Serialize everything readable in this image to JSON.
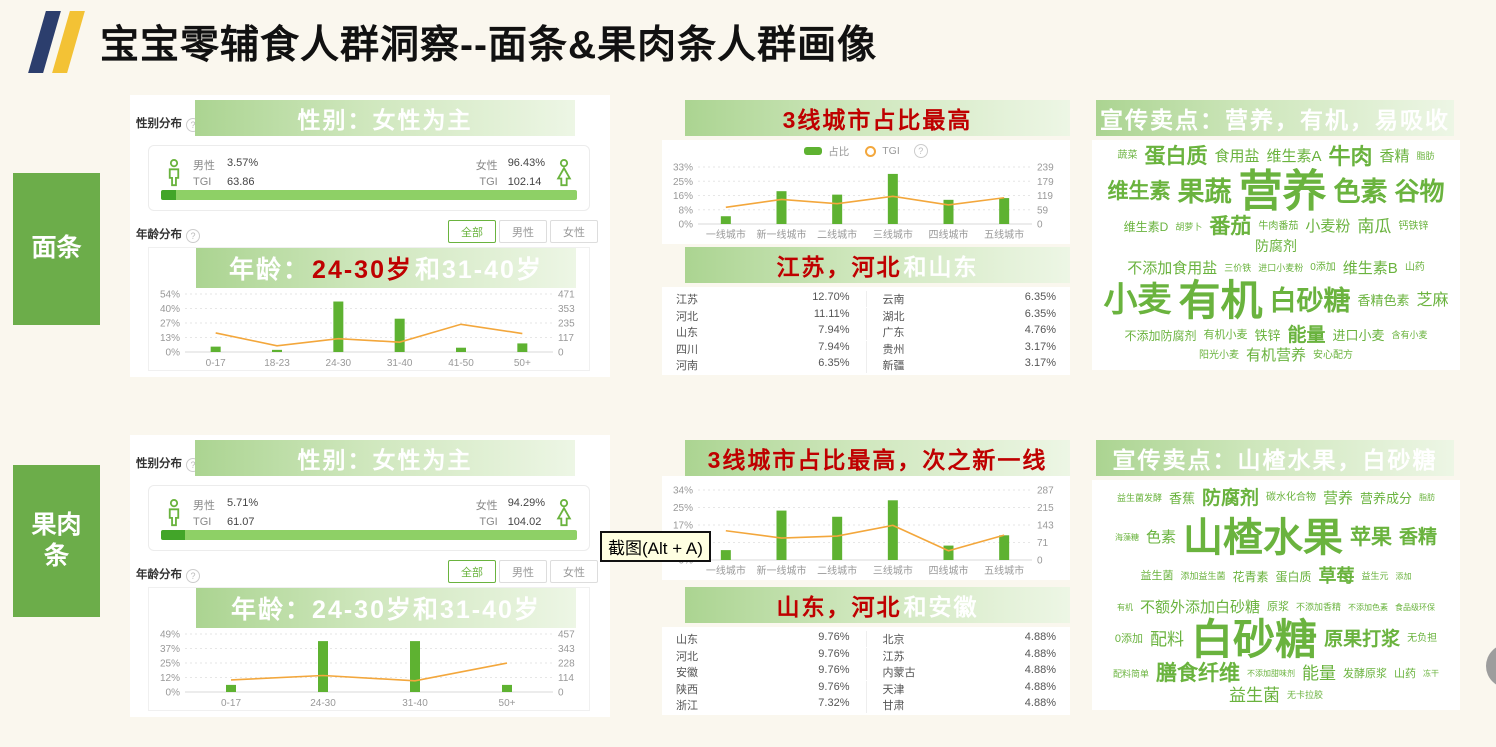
{
  "page": {
    "title": "宝宝零辅食人群洞察--面条&果肉条人群画像"
  },
  "colors": {
    "green": "#6ab33e",
    "bar_green": "#5eb231",
    "line_orange": "#f3a73c",
    "red": "#bf0000",
    "navy": "#2c3e6d",
    "gold": "#f3c235",
    "white": "#ffffff"
  },
  "overlay": {
    "screenshot_tooltip": "截图(Alt + A)"
  },
  "labels": {
    "gender_section": "性别分布",
    "age_section": "年龄分布",
    "male": "男性",
    "female": "女性",
    "tgi": "TGI",
    "tabs": [
      "全部",
      "男性",
      "女性"
    ],
    "legend_share": "占比",
    "legend_tgi": "TGI"
  },
  "rows": [
    {
      "side_label": "面条",
      "gender": {
        "banner": [
          {
            "t": "性别：女性为主",
            "c": "white"
          }
        ],
        "male_pct": "3.57%",
        "male_tgi": "63.86",
        "female_pct": "96.43%",
        "female_tgi": "102.14"
      },
      "age": {
        "banner": [
          {
            "t": "年龄：",
            "c": "white"
          },
          {
            "t": "24-30岁",
            "c": "red"
          },
          {
            "t": "和31-40岁",
            "c": "white"
          }
        ],
        "chart": {
          "type": "bar+line",
          "categories": [
            "0-17",
            "18-23",
            "24-30",
            "31-40",
            "41-50",
            "50+"
          ],
          "bars_pct": [
            5,
            2,
            47,
            31,
            4,
            8
          ],
          "line_tgi": [
            155,
            50,
            108,
            80,
            225,
            150
          ],
          "left_ticks": [
            "0%",
            "13%",
            "27%",
            "40%",
            "54%"
          ],
          "right_ticks": [
            "0",
            "117",
            "235",
            "353",
            "471"
          ],
          "left_max": 54,
          "right_max": 471
        }
      },
      "city": {
        "banner": [
          {
            "t": "3线城市占比最高",
            "c": "red"
          }
        ],
        "chart": {
          "type": "bar+line",
          "categories": [
            "一线城市",
            "新一线城市",
            "二线城市",
            "三线城市",
            "四线城市",
            "五线城市"
          ],
          "bars_pct": [
            4.5,
            19,
            17,
            29,
            14,
            15
          ],
          "line_tgi": [
            70,
            103,
            85,
            116,
            80,
            110
          ],
          "left_ticks": [
            "0%",
            "8%",
            "16%",
            "25%",
            "33%"
          ],
          "right_ticks": [
            "0",
            "59",
            "119",
            "179",
            "239"
          ],
          "left_max": 33,
          "right_max": 239
        }
      },
      "province": {
        "banner": [
          {
            "t": "江苏，河北",
            "c": "red"
          },
          {
            "t": "和山东",
            "c": "white"
          }
        ],
        "left": [
          [
            "江苏",
            "12.70%"
          ],
          [
            "河北",
            "11.11%"
          ],
          [
            "山东",
            "7.94%"
          ],
          [
            "四川",
            "7.94%"
          ],
          [
            "河南",
            "6.35%"
          ]
        ],
        "right": [
          [
            "云南",
            "6.35%"
          ],
          [
            "湖北",
            "6.35%"
          ],
          [
            "广东",
            "4.76%"
          ],
          [
            "贵州",
            "3.17%"
          ],
          [
            "新疆",
            "3.17%"
          ]
        ]
      },
      "selling": {
        "banner": [
          {
            "t": "宣传卖点：营养，有机，易吸收",
            "c": "white"
          }
        ],
        "cloud1": [
          {
            "t": "蔬菜",
            "s": 10
          },
          {
            "t": "蛋白质",
            "s": 21
          },
          {
            "t": "食用盐",
            "s": 15
          },
          {
            "t": "维生素A",
            "s": 15
          },
          {
            "t": "牛肉",
            "s": 22
          },
          {
            "t": "香精",
            "s": 15
          },
          {
            "t": "脂肪",
            "s": 9
          },
          {
            "t": "维生素",
            "s": 21
          },
          {
            "t": "果蔬",
            "s": 27
          },
          {
            "t": "营养",
            "s": 44
          },
          {
            "t": "色素",
            "s": 27
          },
          {
            "t": "谷物",
            "s": 25
          },
          {
            "t": "维生素D",
            "s": 12
          },
          {
            "t": "胡萝卜",
            "s": 9
          },
          {
            "t": "番茄",
            "s": 21
          },
          {
            "t": "牛肉番茄",
            "s": 10
          },
          {
            "t": "小麦粉",
            "s": 15
          },
          {
            "t": "南瓜",
            "s": 17
          },
          {
            "t": "钙铁锌",
            "s": 10
          },
          {
            "t": "防腐剂",
            "s": 14
          }
        ],
        "cloud2": [
          {
            "t": "不添加食用盐",
            "s": 15
          },
          {
            "t": "三价铁",
            "s": 9
          },
          {
            "t": "进口小麦粉",
            "s": 9
          },
          {
            "t": "0添加",
            "s": 10
          },
          {
            "t": "维生素B",
            "s": 15
          },
          {
            "t": "山药",
            "s": 10
          },
          {
            "t": "小麦",
            "s": 34
          },
          {
            "t": "有机",
            "s": 42
          },
          {
            "t": "白砂糖",
            "s": 27
          },
          {
            "t": "香精色素",
            "s": 13
          },
          {
            "t": "芝麻",
            "s": 16
          },
          {
            "t": "不添加防腐剂",
            "s": 12
          },
          {
            "t": "有机小麦",
            "s": 11
          },
          {
            "t": "铁锌",
            "s": 13
          },
          {
            "t": "能量",
            "s": 19
          },
          {
            "t": "进口小麦",
            "s": 13
          },
          {
            "t": "含有小麦",
            "s": 9
          },
          {
            "t": "阳光小麦",
            "s": 10
          },
          {
            "t": "有机营养",
            "s": 15
          },
          {
            "t": "安心配方",
            "s": 10
          }
        ]
      }
    },
    {
      "side_label": "果肉\n条",
      "gender": {
        "banner": [
          {
            "t": "性别：女性为主",
            "c": "white"
          }
        ],
        "male_pct": "5.71%",
        "male_tgi": "61.07",
        "female_pct": "94.29%",
        "female_tgi": "104.02"
      },
      "age": {
        "banner": [
          {
            "t": "年龄：24-30岁和31-40岁",
            "c": "white"
          }
        ],
        "chart": {
          "type": "bar+line",
          "categories": [
            "0-17",
            "24-30",
            "31-40",
            "50+"
          ],
          "bars_pct": [
            6,
            43,
            43,
            6
          ],
          "line_tgi": [
            95,
            130,
            88,
            228
          ],
          "left_ticks": [
            "0%",
            "12%",
            "25%",
            "37%",
            "49%"
          ],
          "right_ticks": [
            "0",
            "114",
            "228",
            "343",
            "457"
          ],
          "left_max": 49,
          "right_max": 457
        }
      },
      "city": {
        "banner": [
          {
            "t": "3线城市占比最高，次之新一线",
            "c": "red"
          }
        ],
        "chart": {
          "type": "bar+line",
          "categories": [
            "一线城市",
            "新一线城市",
            "二线城市",
            "三线城市",
            "四线城市",
            "五线城市"
          ],
          "bars_pct": [
            4.8,
            24,
            21,
            29,
            7,
            12
          ],
          "line_tgi": [
            120,
            90,
            98,
            142,
            38,
            102
          ],
          "left_ticks": [
            "0%",
            "8%",
            "17%",
            "25%",
            "34%"
          ],
          "right_ticks": [
            "0",
            "71",
            "143",
            "215",
            "287"
          ],
          "left_max": 34,
          "right_max": 287
        }
      },
      "province": {
        "banner": [
          {
            "t": "山东，河北",
            "c": "red"
          },
          {
            "t": "和安徽",
            "c": "white"
          }
        ],
        "left": [
          [
            "山东",
            "9.76%"
          ],
          [
            "河北",
            "9.76%"
          ],
          [
            "安徽",
            "9.76%"
          ],
          [
            "陕西",
            "9.76%"
          ],
          [
            "浙江",
            "7.32%"
          ]
        ],
        "right": [
          [
            "北京",
            "4.88%"
          ],
          [
            "江苏",
            "4.88%"
          ],
          [
            "内蒙古",
            "4.88%"
          ],
          [
            "天津",
            "4.88%"
          ],
          [
            "甘肃",
            "4.88%"
          ]
        ]
      },
      "selling": {
        "banner": [
          {
            "t": "宣传卖点：山楂水果，白砂糖",
            "c": "white"
          }
        ],
        "cloud1": [
          {
            "t": "益生菌发酵",
            "s": 9
          },
          {
            "t": "香蕉",
            "s": 13
          },
          {
            "t": "防腐剂",
            "s": 19
          },
          {
            "t": "碳水化合物",
            "s": 10
          },
          {
            "t": "营养",
            "s": 15
          },
          {
            "t": "营养成分",
            "s": 13
          },
          {
            "t": "脂肪",
            "s": 8
          },
          {
            "t": "海藻糖",
            "s": 8
          },
          {
            "t": "色素",
            "s": 15
          },
          {
            "t": "山楂水果",
            "s": 40
          },
          {
            "t": "苹果",
            "s": 21
          },
          {
            "t": "香精",
            "s": 19
          },
          {
            "t": "益生菌",
            "s": 11
          },
          {
            "t": "添加益生菌",
            "s": 9
          },
          {
            "t": "花青素",
            "s": 12
          },
          {
            "t": "蛋白质",
            "s": 12
          },
          {
            "t": "草莓",
            "s": 18
          },
          {
            "t": "益生元",
            "s": 9
          },
          {
            "t": "添加",
            "s": 8
          }
        ],
        "cloud2": [
          {
            "t": "有机",
            "s": 8
          },
          {
            "t": "不额外添加白砂糖",
            "s": 15
          },
          {
            "t": "原浆",
            "s": 11
          },
          {
            "t": "不添加香精",
            "s": 9
          },
          {
            "t": "不添加色素",
            "s": 8
          },
          {
            "t": "食品级环保",
            "s": 8
          },
          {
            "t": "0添加",
            "s": 11
          },
          {
            "t": "配料",
            "s": 17
          },
          {
            "t": "白砂糖",
            "s": 42
          },
          {
            "t": "原果打浆",
            "s": 19
          },
          {
            "t": "无负担",
            "s": 10
          },
          {
            "t": "配料简单",
            "s": 9
          },
          {
            "t": "膳食纤维",
            "s": 21
          },
          {
            "t": "不添加甜味剂",
            "s": 8
          },
          {
            "t": "能量",
            "s": 17
          },
          {
            "t": "发酵原浆",
            "s": 11
          },
          {
            "t": "山药",
            "s": 11
          },
          {
            "t": "冻干",
            "s": 8
          },
          {
            "t": "益生菌",
            "s": 17
          },
          {
            "t": "无卡拉胶",
            "s": 9
          }
        ]
      }
    }
  ]
}
